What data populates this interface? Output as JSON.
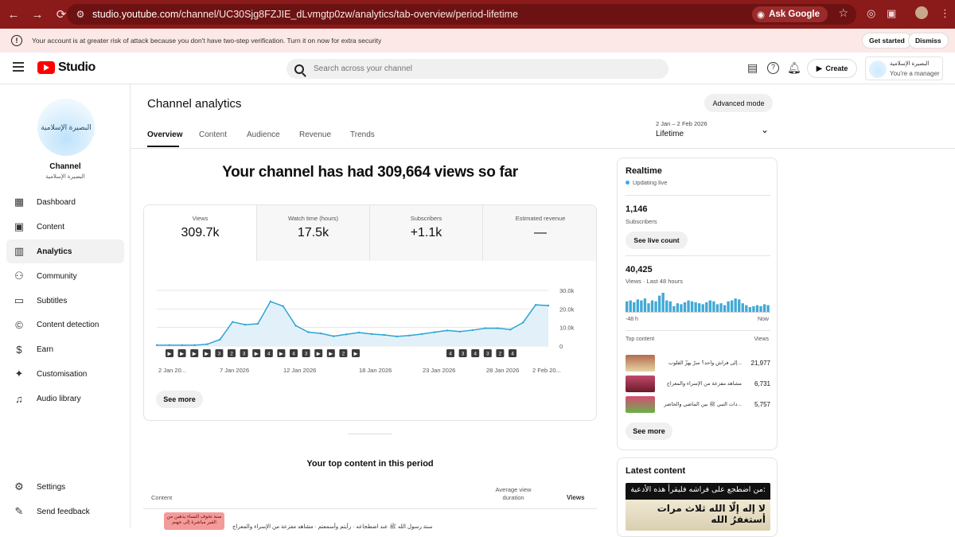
{
  "browser": {
    "url_host": "studio.youtube.com",
    "url_path": "/channel/UC30Sjg8FZJIE_dLvmgtp0zw/analytics/tab-overview/period-lifetime",
    "ask_google": "Ask Google"
  },
  "banner": {
    "text": "Your account is at greater risk of attack because you don't have two-step verification. Turn it on now for extra security",
    "get_started": "Get started",
    "dismiss": "Dismiss"
  },
  "header": {
    "logo_text": "Studio",
    "search_placeholder": "Search across your channel",
    "create_label": "Create",
    "account_name": "البصيرة الإسلامية",
    "account_role": "You're a manager"
  },
  "sidebar": {
    "avatar_text": "البصيرة الإسلامية",
    "channel_label": "Channel",
    "channel_name": "البصيرة الإسلامية",
    "items": [
      {
        "label": "Dashboard",
        "icon": "dashboard-icon"
      },
      {
        "label": "Content",
        "icon": "content-icon"
      },
      {
        "label": "Analytics",
        "icon": "analytics-icon"
      },
      {
        "label": "Community",
        "icon": "community-icon"
      },
      {
        "label": "Subtitles",
        "icon": "subtitles-icon"
      },
      {
        "label": "Content detection",
        "icon": "copyright-icon"
      },
      {
        "label": "Earn",
        "icon": "dollar-icon"
      },
      {
        "label": "Customisation",
        "icon": "wand-icon"
      },
      {
        "label": "Audio library",
        "icon": "audio-library-icon"
      }
    ],
    "settings": "Settings",
    "feedback": "Send feedback"
  },
  "main": {
    "title": "Channel analytics",
    "advanced_mode": "Advanced mode",
    "tabs": [
      "Overview",
      "Content",
      "Audience",
      "Revenue",
      "Trends"
    ],
    "period_range": "2 Jan – 2 Feb 2026",
    "period_name": "Lifetime",
    "headline": "Your channel has had 309,664 views so far",
    "metrics": [
      {
        "label": "Views",
        "value": "309.7k"
      },
      {
        "label": "Watch time (hours)",
        "value": "17.5k"
      },
      {
        "label": "Subscribers",
        "value": "+1.1k"
      },
      {
        "label": "Estimated revenue",
        "value": "—"
      }
    ],
    "see_more": "See more",
    "top_content_title": "Your top content in this period",
    "tc_head_content": "Content",
    "tc_head_avg": "Average view duration",
    "tc_head_views": "Views",
    "tc_first_title": "سنة رسول الله ﷺ عند اضطجاعه · رأيتم وأسمعتم · مشاهد مفزعة من الإسراء والمعراج",
    "tc_thumb_text": "سنة تخوف النساء يذهبن من الفير مباشرة إلى جهنم"
  },
  "chart_data": {
    "type": "line",
    "x": [
      "2 Jan",
      "3 Jan",
      "4 Jan",
      "5 Jan",
      "6 Jan",
      "7 Jan",
      "8 Jan",
      "9 Jan",
      "10 Jan",
      "11 Jan",
      "12 Jan",
      "13 Jan",
      "14 Jan",
      "15 Jan",
      "16 Jan",
      "17 Jan",
      "18 Jan",
      "19 Jan",
      "20 Jan",
      "21 Jan",
      "22 Jan",
      "23 Jan",
      "24 Jan",
      "25 Jan",
      "26 Jan",
      "27 Jan",
      "28 Jan",
      "29 Jan",
      "30 Jan",
      "31 Jan",
      "1 Feb",
      "2 Feb"
    ],
    "values": [
      500,
      500,
      500,
      500,
      1000,
      3500,
      13000,
      11500,
      12000,
      24000,
      21500,
      11000,
      7500,
      6800,
      5300,
      6300,
      7300,
      6500,
      6000,
      5200,
      5700,
      6500,
      7500,
      8400,
      7800,
      8600,
      9600,
      9600,
      8900,
      12700,
      22200,
      21800
    ],
    "x_tick_labels": [
      "2 Jan 20...",
      "7 Jan 2026",
      "12 Jan 2026",
      "18 Jan 2026",
      "23 Jan 2026",
      "28 Jan 2026",
      "2 Feb 20..."
    ],
    "y_tick_labels": [
      "30.0k",
      "20.0k",
      "10.0k",
      "0"
    ],
    "ylim": [
      0,
      30000
    ],
    "line_color": "#2fa4d3",
    "fill_color": "#e2f1f9",
    "video_markers": [
      "2",
      "3",
      "2",
      "4",
      "3",
      "3",
      "2",
      "4",
      "3",
      "3",
      "4",
      "3",
      "2",
      "4",
      "2",
      "3",
      "2",
      "3",
      "2",
      "4"
    ]
  },
  "realtime": {
    "title": "Realtime",
    "live": "Updating live",
    "subs_value": "1,146",
    "subs_label": "Subscribers",
    "live_count_btn": "See live count",
    "views_value": "40,425",
    "views_label": "Views · Last 48 hours",
    "bars": [
      11,
      12,
      10,
      13,
      12,
      14,
      9,
      12,
      11,
      17,
      20,
      12,
      11,
      6,
      9,
      8,
      10,
      12,
      11,
      10,
      9,
      8,
      10,
      12,
      11,
      8,
      9,
      7,
      11,
      12,
      14,
      13,
      9,
      7,
      5,
      6,
      7,
      6,
      8,
      7
    ],
    "axis_start": "-48 h",
    "axis_end": "Now",
    "top_content_label": "Top content",
    "views_col": "Views",
    "rows": [
      {
        "title": "...إلى فراش واحد؟ سرّ يهزّ القلوب",
        "views": "21,977",
        "thumb": "#b36b4d"
      },
      {
        "title": "مشاهد مفزعة من الإسراء والمعراج",
        "views": "6,731",
        "thumb": "#c24a6a"
      },
      {
        "title": "...دات النبي ﷺ بين الماضي والحاضر",
        "views": "5,757",
        "thumb": "#d84b75"
      }
    ],
    "see_more": "See more"
  },
  "latest": {
    "title": "Latest content",
    "line1": "من اضطجع على فراشه فليقرأ هذه الأدعية:",
    "line2": "لا إله إلّا الله ثلاث مرات أستغفرُ الله"
  }
}
